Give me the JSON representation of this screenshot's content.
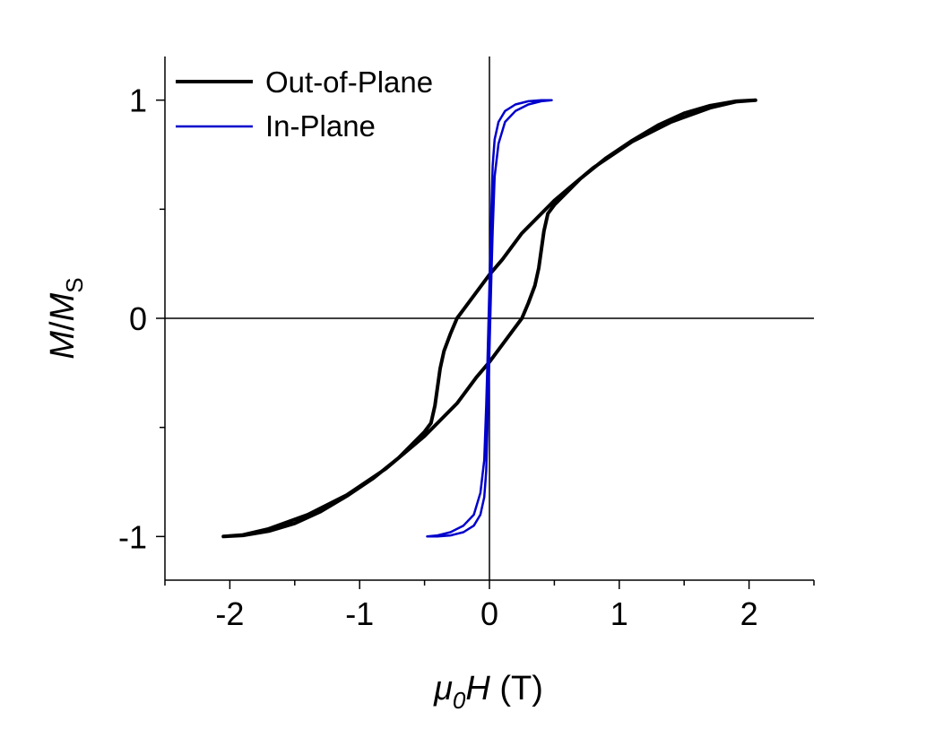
{
  "chart_data": {
    "type": "line",
    "title": "",
    "xlabel": {
      "mu": "μ",
      "sub": "0",
      "var": "H",
      "unit": " (T)"
    },
    "ylabel": {
      "m": "M",
      "slash": "/",
      "ms": "M",
      "sub": "S"
    },
    "xlim": [
      -2.5,
      2.5
    ],
    "ylim": [
      -1.2,
      1.2
    ],
    "x_ticks": [
      -2,
      -1,
      0,
      1,
      2
    ],
    "x_tick_labels": [
      "-2",
      "-1",
      "0",
      "1",
      "2"
    ],
    "x_minor_ticks": [
      -2.5,
      -1.5,
      -0.5,
      0.5,
      1.5,
      2.5
    ],
    "y_ticks": [
      -1,
      0,
      1
    ],
    "y_tick_labels": [
      "-1",
      "0",
      "1"
    ],
    "y_minor_ticks": [
      -0.5,
      0.5
    ],
    "zero_lines": true,
    "grid": false,
    "legend_position": "top-left",
    "series": [
      {
        "name": "Out-of-Plane",
        "color": "#000000",
        "x": [
          -2.05,
          -1.9,
          -1.7,
          -1.5,
          -1.3,
          -1.1,
          -0.9,
          -0.7,
          -0.5,
          -0.45,
          -0.42,
          -0.38,
          -0.35,
          -0.3,
          -0.25,
          -0.2,
          -0.1,
          0.0,
          0.1,
          0.25,
          0.5,
          0.8,
          1.1,
          1.4,
          1.7,
          1.9,
          2.05,
          2.05,
          1.9,
          1.7,
          1.5,
          1.3,
          1.1,
          0.9,
          0.7,
          0.5,
          0.45,
          0.42,
          0.38,
          0.35,
          0.3,
          0.25,
          0.2,
          0.1,
          0.0,
          -0.1,
          -0.25,
          -0.5,
          -0.8,
          -1.1,
          -1.4,
          -1.7,
          -1.9,
          -2.05
        ],
        "y": [
          -1.0,
          -0.995,
          -0.975,
          -0.94,
          -0.885,
          -0.815,
          -0.735,
          -0.64,
          -0.52,
          -0.48,
          -0.4,
          -0.23,
          -0.15,
          -0.07,
          0.0,
          0.04,
          0.12,
          0.2,
          0.27,
          0.39,
          0.54,
          0.69,
          0.81,
          0.9,
          0.965,
          0.993,
          1.0,
          1.0,
          0.995,
          0.975,
          0.94,
          0.885,
          0.815,
          0.735,
          0.64,
          0.52,
          0.48,
          0.4,
          0.23,
          0.15,
          0.07,
          0.0,
          -0.04,
          -0.12,
          -0.2,
          -0.27,
          -0.39,
          -0.54,
          -0.69,
          -0.81,
          -0.9,
          -0.965,
          -0.993,
          -1.0
        ]
      },
      {
        "name": "In-Plane",
        "color": "#0000cc",
        "x": [
          -0.48,
          -0.4,
          -0.3,
          -0.2,
          -0.12,
          -0.07,
          -0.04,
          -0.025,
          -0.015,
          0.015,
          0.025,
          0.04,
          0.07,
          0.12,
          0.2,
          0.3,
          0.4,
          0.48,
          0.48,
          0.4,
          0.3,
          0.2,
          0.12,
          0.07,
          0.04,
          0.025,
          0.015,
          -0.015,
          -0.025,
          -0.04,
          -0.07,
          -0.12,
          -0.2,
          -0.3,
          -0.4,
          -0.48
        ],
        "y": [
          -1.0,
          -0.995,
          -0.98,
          -0.95,
          -0.9,
          -0.8,
          -0.65,
          -0.4,
          -0.2,
          0.5,
          0.7,
          0.82,
          0.9,
          0.95,
          0.98,
          0.995,
          1.0,
          1.0,
          1.0,
          0.995,
          0.98,
          0.95,
          0.9,
          0.8,
          0.65,
          0.4,
          0.2,
          -0.5,
          -0.7,
          -0.82,
          -0.9,
          -0.95,
          -0.98,
          -0.995,
          -1.0,
          -1.0
        ]
      }
    ]
  }
}
